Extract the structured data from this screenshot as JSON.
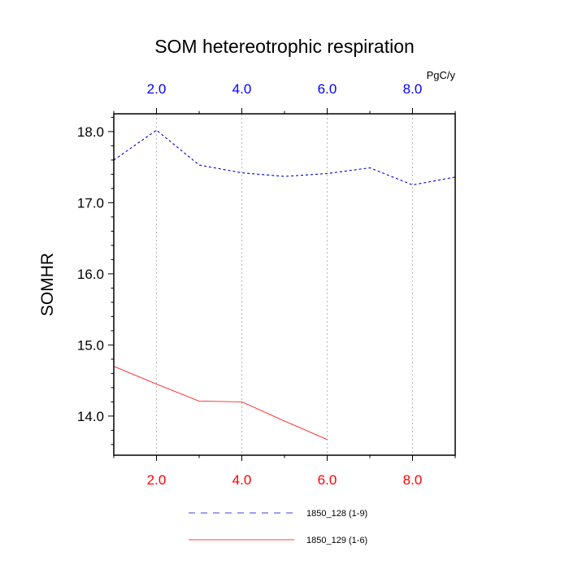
{
  "chart_data": {
    "type": "line",
    "title": "SOM hetereotrophic respiration",
    "ylabel": "SOMHR",
    "top_axis_units": "PgC/y",
    "xlim": [
      1,
      9
    ],
    "ylim": [
      13.45,
      18.25
    ],
    "x_ticks": [
      2,
      4,
      6,
      8
    ],
    "x_tick_labels": [
      "2.0",
      "4.0",
      "6.0",
      "8.0"
    ],
    "y_ticks": [
      14,
      15,
      16,
      17,
      18
    ],
    "y_tick_labels": [
      "14.0",
      "15.0",
      "16.0",
      "17.0",
      "18.0"
    ],
    "grid": "vertical dotted at major x ticks",
    "legend_position": "bottom-center",
    "top_axis_color": "#0000ff",
    "bottom_axis_color": "#ff0000",
    "series": [
      {
        "name": "1850_128 (1-9)",
        "color": "#0000cc",
        "dash": "dashed",
        "x": [
          1,
          2,
          3,
          4,
          5,
          6,
          7,
          8,
          9
        ],
        "y": [
          17.6,
          18.02,
          17.53,
          17.42,
          17.37,
          17.41,
          17.49,
          17.25,
          17.36
        ]
      },
      {
        "name": "1850_129 (1-6)",
        "color": "#ff0000",
        "dash": "solid",
        "x": [
          1,
          2,
          3,
          4,
          5,
          6
        ],
        "y": [
          14.7,
          14.45,
          14.21,
          14.2,
          13.93,
          13.67
        ]
      }
    ]
  }
}
